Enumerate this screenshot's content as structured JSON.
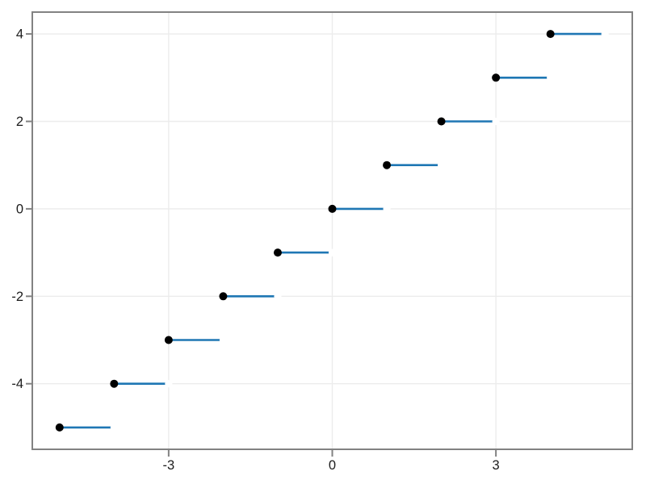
{
  "chart_data": {
    "type": "step",
    "step_style": "post",
    "title": "",
    "xlabel": "",
    "ylabel": "",
    "x": [
      -5,
      -4,
      -3,
      -2,
      -1,
      0,
      1,
      2,
      3,
      4
    ],
    "y": [
      -5,
      -4,
      -3,
      -2,
      -1,
      0,
      1,
      2,
      3,
      4
    ],
    "segment_run": 1,
    "xlim": [
      -5.5,
      5.5
    ],
    "ylim": [
      -5.5,
      4.5
    ],
    "x_ticks": [
      -3,
      0,
      3
    ],
    "x_tick_labels": [
      "-3",
      "0",
      "3"
    ],
    "y_ticks": [
      -4,
      -2,
      0,
      2,
      4
    ],
    "y_tick_labels": [
      "-4",
      "-2",
      "0",
      "2",
      "4"
    ],
    "grid": true,
    "legend": "none",
    "marker": "filled-circle-at-left-end",
    "open_right_endpoints": true,
    "colors": {
      "line": "#1f77b4",
      "marker": "#000000",
      "frame": "#828282",
      "grid": "#ececec",
      "tick": "#828282",
      "tick_label": "#1c1c1c",
      "background": "#ffffff",
      "open_endpoint_mask": "#ffffff"
    }
  }
}
